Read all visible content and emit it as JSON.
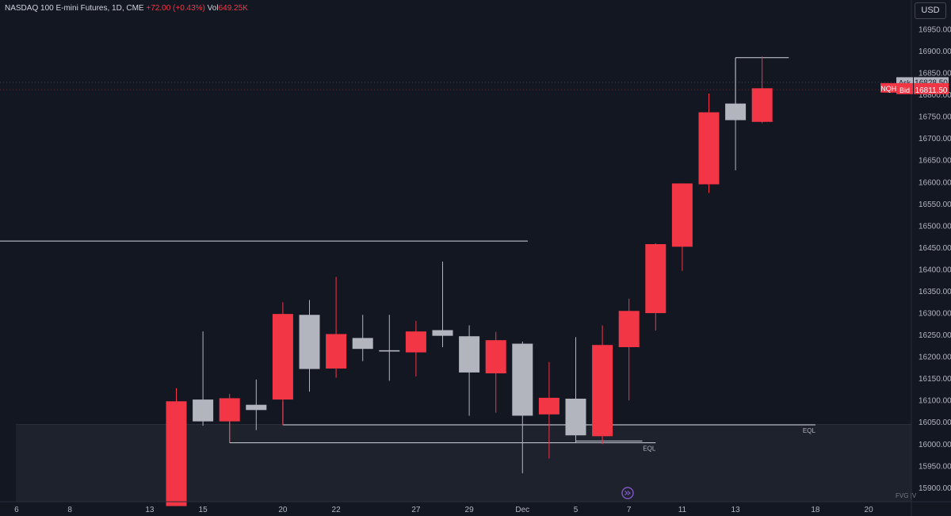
{
  "header": {
    "symbol": "NASDAQ 100 E-mini Futures, 1D, CME",
    "change": "+72.00 (+0.43%)",
    "volume_label": "Vol",
    "volume_value": "649.25K"
  },
  "currency_button": "USD",
  "chart_data": {
    "type": "candlestick",
    "title": "NASDAQ 100 E-mini Futures, 1D, CME",
    "ylim": [
      15860,
      16995
    ],
    "y_ticks": [
      15900,
      15950,
      16000,
      16050,
      16100,
      16150,
      16200,
      16250,
      16300,
      16350,
      16400,
      16450,
      16500,
      16550,
      16600,
      16650,
      16700,
      16750,
      16800,
      16850,
      16900,
      16950
    ],
    "x_ticks": [
      {
        "label": "6",
        "i": -3
      },
      {
        "label": "8",
        "i": -1
      },
      {
        "label": "13",
        "i": 2
      },
      {
        "label": "15",
        "i": 4
      },
      {
        "label": "20",
        "i": 7
      },
      {
        "label": "22",
        "i": 9
      },
      {
        "label": "27",
        "i": 12
      },
      {
        "label": "29",
        "i": 14
      },
      {
        "label": "Dec",
        "i": 16
      },
      {
        "label": "5",
        "i": 18
      },
      {
        "label": "7",
        "i": 20
      },
      {
        "label": "11",
        "i": 22
      },
      {
        "label": "13",
        "i": 24
      },
      {
        "label": "18",
        "i": 27
      },
      {
        "label": "20",
        "i": 29
      }
    ],
    "candles": [
      {
        "i": 3,
        "o": 16098,
        "h": 16128,
        "l": 15858,
        "c": 15858
      },
      {
        "i": 4,
        "o": 16052,
        "h": 16258,
        "l": 16042,
        "c": 16102
      },
      {
        "i": 5,
        "o": 16105,
        "h": 16115,
        "l": 16003,
        "c": 16052
      },
      {
        "i": 6,
        "o": 16078,
        "h": 16148,
        "l": 16032,
        "c": 16090
      },
      {
        "i": 7,
        "o": 16298,
        "h": 16325,
        "l": 16043,
        "c": 16102
      },
      {
        "i": 8,
        "o": 16172,
        "h": 16330,
        "l": 16120,
        "c": 16296
      },
      {
        "i": 9,
        "o": 16252,
        "h": 16383,
        "l": 16152,
        "c": 16173
      },
      {
        "i": 10,
        "o": 16218,
        "h": 16296,
        "l": 16190,
        "c": 16243
      },
      {
        "i": 11,
        "o": 16212,
        "h": 16296,
        "l": 16145,
        "c": 16215
      },
      {
        "i": 12,
        "o": 16258,
        "h": 16282,
        "l": 16155,
        "c": 16210
      },
      {
        "i": 13,
        "o": 16248,
        "h": 16418,
        "l": 16222,
        "c": 16261
      },
      {
        "i": 14,
        "o": 16164,
        "h": 16272,
        "l": 16065,
        "c": 16247
      },
      {
        "i": 15,
        "o": 16238,
        "h": 16257,
        "l": 16072,
        "c": 16162
      },
      {
        "i": 16,
        "o": 16065,
        "h": 16235,
        "l": 15933,
        "c": 16230
      },
      {
        "i": 17,
        "o": 16106,
        "h": 16188,
        "l": 15967,
        "c": 16068
      },
      {
        "i": 18,
        "o": 16020,
        "h": 16245,
        "l": 16003,
        "c": 16104
      },
      {
        "i": 19,
        "o": 16227,
        "h": 16272,
        "l": 16000,
        "c": 16018
      },
      {
        "i": 20,
        "o": 16305,
        "h": 16333,
        "l": 16100,
        "c": 16222
      },
      {
        "i": 21,
        "o": 16458,
        "h": 16460,
        "l": 16260,
        "c": 16300
      },
      {
        "i": 22,
        "o": 16597,
        "h": 16597,
        "l": 16397,
        "c": 16452
      },
      {
        "i": 23,
        "o": 16760,
        "h": 16803,
        "l": 16575,
        "c": 16595
      },
      {
        "i": 24,
        "o": 16742,
        "h": 16885,
        "l": 16627,
        "c": 16780
      },
      {
        "i": 25,
        "o": 16815,
        "h": 16888,
        "l": 16735,
        "c": 16738
      }
    ],
    "levels": [
      {
        "price": 16885,
        "from_i": 24,
        "to_i": 26
      },
      {
        "price": 16465,
        "from_i": -6,
        "to_i": 16.2
      },
      {
        "price": 16044,
        "from_i": 7,
        "to_i": 27,
        "label": "EQL"
      },
      {
        "price": 16003,
        "from_i": 5,
        "to_i": 21,
        "label": "EQL"
      },
      {
        "price": 16007,
        "from_i": 18,
        "to_i": 20.5
      }
    ],
    "fvg_zone": {
      "top": 16045,
      "bottom": 15860,
      "label": "FVG [V"
    },
    "quote_labels": [
      {
        "tag": "Ask",
        "value": "16828.50",
        "price": 16828.5,
        "style": "ask"
      },
      {
        "tag": "NQHZ024",
        "value": "16815.00",
        "price": 16815,
        "style": "last"
      },
      {
        "tag": "Bid",
        "value": "16811.50",
        "price": 16811.5,
        "style": "bid"
      }
    ],
    "colors": {
      "background": "#131722",
      "up": "#b2b5be",
      "down": "#f23645",
      "text": "#b2b5be",
      "line": "#d1d4dc",
      "fvg": "#1e222d",
      "marker": "#7e57c2"
    }
  }
}
